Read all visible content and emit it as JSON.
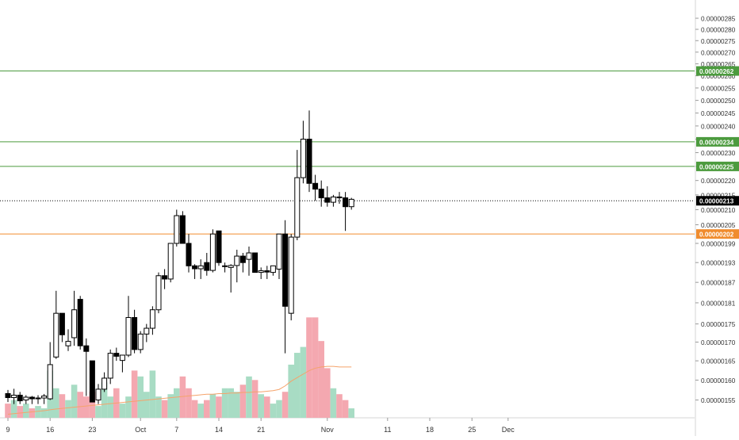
{
  "chart_data": {
    "type": "candlestick",
    "y_scale": "log",
    "ylim": [
      1.52e-06,
      2.89e-06
    ],
    "y_ticks": [
      "0.00000155",
      "0.00000160",
      "0.00000165",
      "0.00000170",
      "0.00000175",
      "0.00000181",
      "0.00000187",
      "0.00000193",
      "0.00000199",
      "0.00000205",
      "0.00000210",
      "0.00000215",
      "0.00000220",
      "0.00000225",
      "0.00000230",
      "0.00000235",
      "0.00000240",
      "0.00000245",
      "0.00000250",
      "0.00000255",
      "0.00000260",
      "0.00000265",
      "0.00000270",
      "0.00000275",
      "0.00000280",
      "0.00000285"
    ],
    "x_ticks": [
      {
        "label": "9",
        "day": 0
      },
      {
        "label": "16",
        "day": 7
      },
      {
        "label": "23",
        "day": 14
      },
      {
        "label": "Oct",
        "day": 22
      },
      {
        "label": "7",
        "day": 28
      },
      {
        "label": "14",
        "day": 35
      },
      {
        "label": "21",
        "day": 42
      },
      {
        "label": "Nov",
        "day": 53
      },
      {
        "label": "11",
        "day": 63
      },
      {
        "label": "18",
        "day": 70
      },
      {
        "label": "25",
        "day": 77
      },
      {
        "label": "Dec",
        "day": 83
      }
    ],
    "candles": [
      {
        "day": 0,
        "o": 1.566,
        "h": 1.575,
        "l": 1.545,
        "c": 1.556
      },
      {
        "day": 1,
        "o": 1.556,
        "h": 1.578,
        "l": 1.54,
        "c": 1.562
      },
      {
        "day": 2,
        "o": 1.562,
        "h": 1.57,
        "l": 1.54,
        "c": 1.548
      },
      {
        "day": 3,
        "o": 1.55,
        "h": 1.562,
        "l": 1.54,
        "c": 1.557
      },
      {
        "day": 4,
        "o": 1.557,
        "h": 1.56,
        "l": 1.54,
        "c": 1.553
      },
      {
        "day": 5,
        "o": 1.553,
        "h": 1.562,
        "l": 1.54,
        "c": 1.555
      },
      {
        "day": 6,
        "o": 1.555,
        "h": 1.565,
        "l": 1.54,
        "c": 1.56
      },
      {
        "day": 7,
        "o": 1.553,
        "h": 1.7,
        "l": 1.55,
        "c": 1.64
      },
      {
        "day": 8,
        "o": 1.66,
        "h": 1.845,
        "l": 1.655,
        "c": 1.78
      },
      {
        "day": 9,
        "o": 1.78,
        "h": 1.78,
        "l": 1.7,
        "c": 1.72
      },
      {
        "day": 10,
        "o": 1.69,
        "h": 1.735,
        "l": 1.676,
        "c": 1.702
      },
      {
        "day": 11,
        "o": 1.712,
        "h": 1.845,
        "l": 1.69,
        "c": 1.79
      },
      {
        "day": 12,
        "o": 1.82,
        "h": 1.83,
        "l": 1.68,
        "c": 1.69
      },
      {
        "day": 13,
        "o": 1.69,
        "h": 1.71,
        "l": 1.56,
        "c": 1.675
      },
      {
        "day": 14,
        "o": 1.65,
        "h": 1.65,
        "l": 1.545,
        "c": 1.545
      },
      {
        "day": 15,
        "o": 1.55,
        "h": 1.59,
        "l": 1.54,
        "c": 1.577
      },
      {
        "day": 16,
        "o": 1.577,
        "h": 1.62,
        "l": 1.57,
        "c": 1.605
      },
      {
        "day": 17,
        "o": 1.605,
        "h": 1.68,
        "l": 1.59,
        "c": 1.67
      },
      {
        "day": 18,
        "o": 1.67,
        "h": 1.685,
        "l": 1.65,
        "c": 1.662
      },
      {
        "day": 19,
        "o": 1.651,
        "h": 1.665,
        "l": 1.62,
        "c": 1.665
      },
      {
        "day": 20,
        "o": 1.665,
        "h": 1.83,
        "l": 1.66,
        "c": 1.768
      },
      {
        "day": 21,
        "o": 1.768,
        "h": 1.79,
        "l": 1.67,
        "c": 1.68
      },
      {
        "day": 22,
        "o": 1.68,
        "h": 1.73,
        "l": 1.67,
        "c": 1.722
      },
      {
        "day": 23,
        "o": 1.722,
        "h": 1.75,
        "l": 1.7,
        "c": 1.738
      },
      {
        "day": 24,
        "o": 1.738,
        "h": 1.8,
        "l": 1.72,
        "c": 1.79
      },
      {
        "day": 25,
        "o": 1.79,
        "h": 1.9,
        "l": 1.78,
        "c": 1.89
      },
      {
        "day": 26,
        "o": 1.89,
        "h": 1.91,
        "l": 1.85,
        "c": 1.88
      },
      {
        "day": 27,
        "o": 1.88,
        "h": 1.99,
        "l": 1.87,
        "c": 1.99
      },
      {
        "day": 28,
        "o": 1.99,
        "h": 2.1,
        "l": 1.98,
        "c": 2.08
      },
      {
        "day": 29,
        "o": 2.08,
        "h": 2.095,
        "l": 1.99,
        "c": 1.99
      },
      {
        "day": 30,
        "o": 1.99,
        "h": 2.02,
        "l": 1.9,
        "c": 1.92
      },
      {
        "day": 31,
        "o": 1.92,
        "h": 1.925,
        "l": 1.88,
        "c": 1.911
      },
      {
        "day": 32,
        "o": 1.911,
        "h": 1.94,
        "l": 1.88,
        "c": 1.92
      },
      {
        "day": 33,
        "o": 1.93,
        "h": 1.96,
        "l": 1.89,
        "c": 1.906
      },
      {
        "day": 34,
        "o": 1.906,
        "h": 2.035,
        "l": 1.9,
        "c": 2.02
      },
      {
        "day": 35,
        "o": 2.03,
        "h": 2.03,
        "l": 1.92,
        "c": 1.93
      },
      {
        "day": 36,
        "o": 1.92,
        "h": 1.93,
        "l": 1.9,
        "c": 1.92
      },
      {
        "day": 37,
        "o": 1.915,
        "h": 1.925,
        "l": 1.84,
        "c": 1.921
      },
      {
        "day": 38,
        "o": 1.921,
        "h": 1.97,
        "l": 1.87,
        "c": 1.95
      },
      {
        "day": 39,
        "o": 1.95,
        "h": 1.96,
        "l": 1.9,
        "c": 1.93
      },
      {
        "day": 40,
        "o": 1.94,
        "h": 1.98,
        "l": 1.89,
        "c": 1.96
      },
      {
        "day": 41,
        "o": 1.96,
        "h": 1.96,
        "l": 1.9,
        "c": 1.9
      },
      {
        "day": 42,
        "o": 1.9,
        "h": 1.915,
        "l": 1.88,
        "c": 1.905
      },
      {
        "day": 43,
        "o": 1.905,
        "h": 1.92,
        "l": 1.88,
        "c": 1.901
      },
      {
        "day": 44,
        "o": 1.9,
        "h": 1.921,
        "l": 1.89,
        "c": 1.92
      },
      {
        "day": 45,
        "o": 1.91,
        "h": 2.02,
        "l": 1.88,
        "c": 2.02
      },
      {
        "day": 46,
        "o": 2.02,
        "h": 2.065,
        "l": 1.67,
        "c": 1.8
      },
      {
        "day": 47,
        "o": 1.78,
        "h": 2.02,
        "l": 1.76,
        "c": 2.01
      },
      {
        "day": 48,
        "o": 2.01,
        "h": 2.31,
        "l": 2.0,
        "c": 2.21
      },
      {
        "day": 49,
        "o": 2.21,
        "h": 2.42,
        "l": 2.19,
        "c": 2.35
      },
      {
        "day": 50,
        "o": 2.35,
        "h": 2.46,
        "l": 2.16,
        "c": 2.19
      },
      {
        "day": 51,
        "o": 2.19,
        "h": 2.22,
        "l": 2.13,
        "c": 2.17
      },
      {
        "day": 52,
        "o": 2.17,
        "h": 2.2,
        "l": 2.11,
        "c": 2.14
      },
      {
        "day": 53,
        "o": 2.14,
        "h": 2.18,
        "l": 2.11,
        "c": 2.125
      },
      {
        "day": 54,
        "o": 2.125,
        "h": 2.15,
        "l": 2.11,
        "c": 2.143
      },
      {
        "day": 55,
        "o": 2.143,
        "h": 2.16,
        "l": 2.12,
        "c": 2.14
      },
      {
        "day": 56,
        "o": 2.14,
        "h": 2.16,
        "l": 2.03,
        "c": 2.11
      },
      {
        "day": 57,
        "o": 2.11,
        "h": 2.14,
        "l": 2.1,
        "c": 2.135
      }
    ],
    "volume": [
      12,
      15,
      10,
      12,
      8,
      10,
      8,
      40,
      25,
      20,
      15,
      28,
      22,
      18,
      22,
      10,
      30,
      18,
      25,
      12,
      18,
      40,
      35,
      22,
      40,
      18,
      15,
      20,
      25,
      35,
      25,
      15,
      12,
      15,
      20,
      18,
      25,
      25,
      22,
      28,
      35,
      32,
      20,
      18,
      12,
      15,
      22,
      45,
      55,
      60,
      85,
      85,
      65,
      42,
      25,
      20,
      15,
      8
    ],
    "ma_line": [
      3,
      3.5,
      4,
      4.5,
      5,
      5.5,
      6,
      6.8,
      7.5,
      8,
      8.5,
      9,
      9.5,
      10,
      10.5,
      11,
      11.5,
      12,
      12.5,
      13,
      13.5,
      14,
      14.5,
      15,
      15.5,
      16,
      16.5,
      17,
      17.5,
      18,
      18.5,
      19,
      19.5,
      20,
      20,
      20.5,
      20.5,
      21,
      21,
      21.5,
      21.5,
      22,
      22,
      22.5,
      23,
      24,
      27,
      31,
      34,
      37,
      40,
      42,
      43,
      43.5,
      43.5,
      43,
      43,
      43
    ],
    "price_lines": [
      {
        "value": "0.00000262",
        "color": "#4c9b3e"
      },
      {
        "value": "0.00000234",
        "color": "#4c9b3e"
      },
      {
        "value": "0.00000225",
        "color": "#4c9b3e"
      },
      {
        "value": "0.00000213",
        "color": "#000000"
      },
      {
        "value": "0.00000202",
        "color": "#f08c2e"
      }
    ]
  }
}
